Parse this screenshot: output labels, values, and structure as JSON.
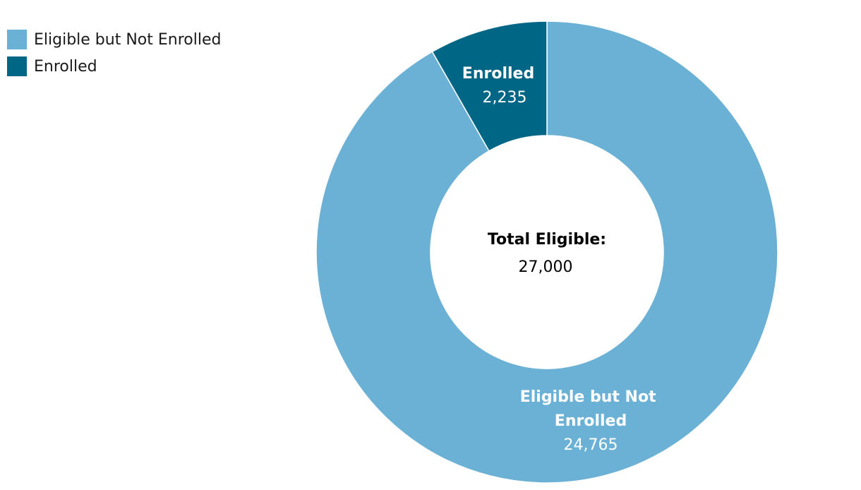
{
  "chart_data": {
    "type": "pie",
    "style": "donut",
    "title": "",
    "legend_position": "top-left",
    "categories": [
      "Eligible but Not Enrolled",
      "Enrolled"
    ],
    "values": [
      24765,
      2235
    ],
    "value_labels": [
      "24,765",
      "2,235"
    ],
    "colors": [
      "#6BB1D6",
      "#006686"
    ],
    "center": {
      "title": "Total Eligible:",
      "value": "27,000"
    }
  }
}
